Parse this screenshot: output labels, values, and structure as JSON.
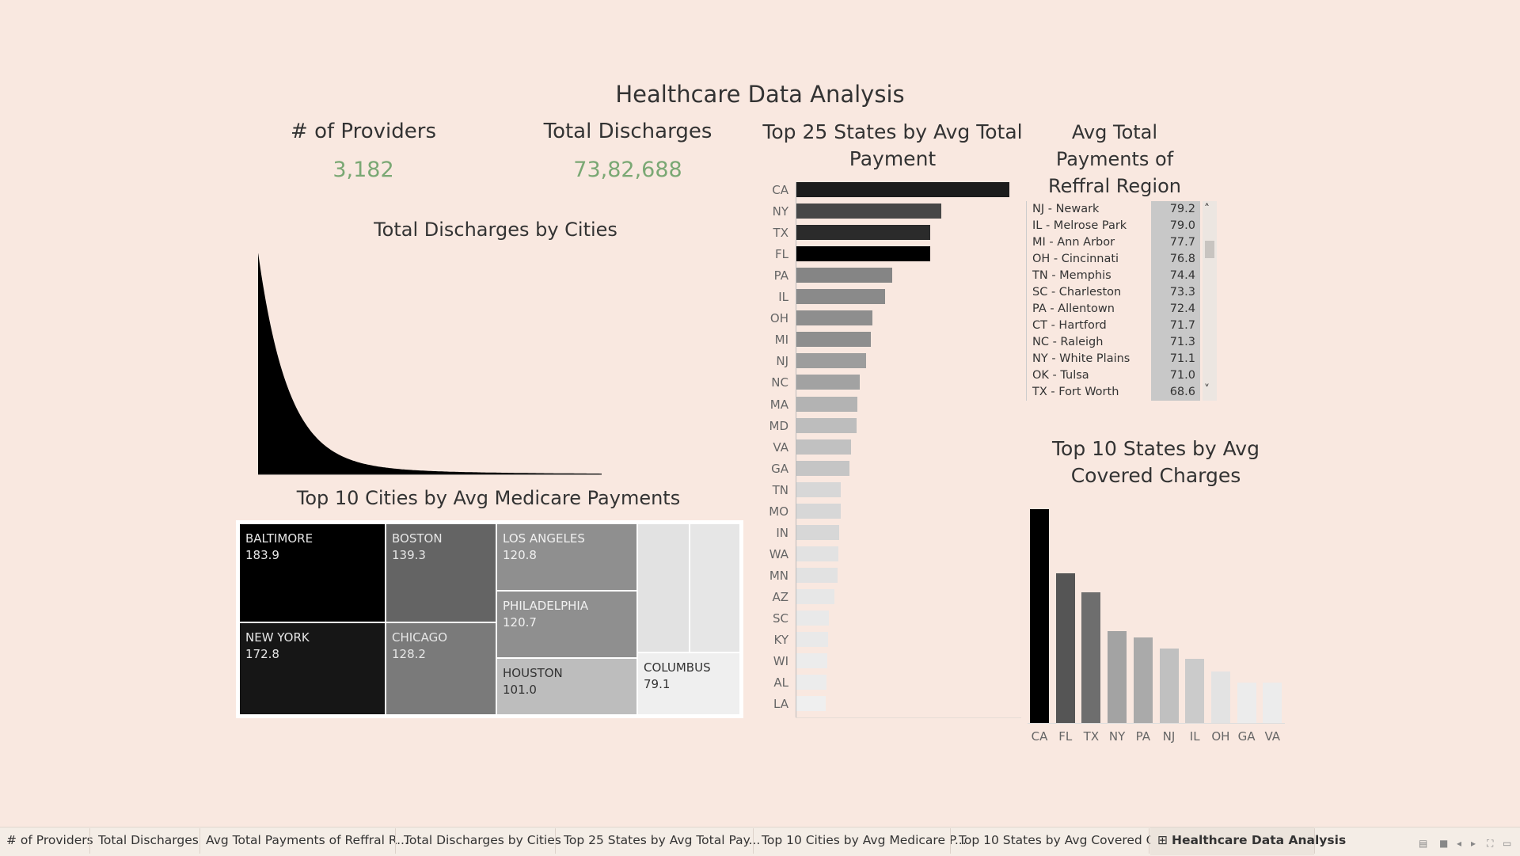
{
  "title": "Healthcare Data Analysis",
  "kpis": {
    "providers": {
      "label": "# of Providers",
      "value": "3,182"
    },
    "discharges": {
      "label": "Total Discharges",
      "value": "73,82,688"
    }
  },
  "discharges_by_cities": {
    "title": "Total Discharges by Cities"
  },
  "top25": {
    "title_line1": "Top 25 States by Avg Total",
    "title_line2": "Payment"
  },
  "region": {
    "title_line1": "Avg Total",
    "title_line2": "Payments of",
    "title_line3": "Reffral Region",
    "scroll_up": "˄",
    "scroll_down": "˅"
  },
  "treemap": {
    "title": "Top 10 Cities by Avg Medicare Payments"
  },
  "top10covered": {
    "title_line1": "Top 10 States by Avg",
    "title_line2": "Covered Charges"
  },
  "tabs": [
    {
      "label": "# of Providers"
    },
    {
      "label": "Total Discharges"
    },
    {
      "label": "Avg Total Payments of Reffral R..."
    },
    {
      "label": "Total Discharges by Cities"
    },
    {
      "label": "Top 25 States by Avg Total Pay..."
    },
    {
      "label": "Top 10 Cities by Avg Medicare P..."
    },
    {
      "label": "Top 10 States by Avg Covered C..."
    },
    {
      "label": "Healthcare Data Analysis",
      "icon": "⊞",
      "active": true
    }
  ],
  "chart_data": [
    {
      "type": "area",
      "title": "Total Discharges by Cities",
      "shape": "long-tail descending distribution",
      "xlabel": "",
      "ylabel": ""
    },
    {
      "type": "bar",
      "orientation": "horizontal",
      "title": "Top 25 States by Avg Total Payment",
      "categories": [
        "CA",
        "NY",
        "TX",
        "FL",
        "PA",
        "IL",
        "OH",
        "MI",
        "NJ",
        "NC",
        "MA",
        "MD",
        "VA",
        "GA",
        "TN",
        "MO",
        "IN",
        "WA",
        "MN",
        "AZ",
        "SC",
        "KY",
        "WI",
        "AL",
        "LA"
      ],
      "values": [
        100,
        68,
        63,
        63,
        45,
        42,
        36,
        35,
        33,
        30,
        29,
        28.5,
        26,
        25,
        21,
        21,
        20.5,
        20,
        19.5,
        18,
        15.5,
        15,
        14.8,
        14.5,
        14
      ],
      "colors": [
        "#1c1c1c",
        "#474747",
        "#2b2b2b",
        "#000000",
        "#858585",
        "#8a8a8a",
        "#8e8e8e",
        "#8e8e8e",
        "#9d9d9d",
        "#a2a2a2",
        "#b3b3b3",
        "#bdbdbd",
        "#c1c1c1",
        "#c5c5c5",
        "#d7d7d7",
        "#d7d7d7",
        "#d7d7d7",
        "#e2e2e2",
        "#e2e2e2",
        "#e7e7e7",
        "#e9e9e9",
        "#e9e9e9",
        "#ececec",
        "#ececec",
        "#efefef"
      ]
    },
    {
      "type": "table",
      "title": "Avg Total Payments of Reffral Region",
      "rows": [
        {
          "name": "NJ - Newark",
          "value": "79.2"
        },
        {
          "name": "IL - Melrose Park",
          "value": "79.0"
        },
        {
          "name": "MI - Ann Arbor",
          "value": "77.7"
        },
        {
          "name": "OH - Cincinnati",
          "value": "76.8"
        },
        {
          "name": "TN - Memphis",
          "value": "74.4"
        },
        {
          "name": "SC - Charleston",
          "value": "73.3"
        },
        {
          "name": "PA - Allentown",
          "value": "72.4"
        },
        {
          "name": "CT - Hartford",
          "value": "71.7"
        },
        {
          "name": "NC - Raleigh",
          "value": "71.3"
        },
        {
          "name": "NY - White Plains",
          "value": "71.1"
        },
        {
          "name": "OK - Tulsa",
          "value": "71.0"
        },
        {
          "name": "TX - Fort Worth",
          "value": "68.6"
        }
      ]
    },
    {
      "type": "heatmap",
      "subtype": "treemap",
      "title": "Top 10 Cities by Avg Medicare Payments",
      "cells": [
        {
          "name": "BALTIMORE",
          "value": "183.9",
          "color": "#000000",
          "text_color": "#e6e6e6"
        },
        {
          "name": "NEW YORK",
          "value": "172.8",
          "color": "#161616",
          "text_color": "#e6e6e6"
        },
        {
          "name": "BOSTON",
          "value": "139.3",
          "color": "#646464",
          "text_color": "#e6e6e6"
        },
        {
          "name": "CHICAGO",
          "value": "128.2",
          "color": "#7a7a7a",
          "text_color": "#e6e6e6"
        },
        {
          "name": "LOS ANGELES",
          "value": "120.8",
          "color": "#8f8f8f",
          "text_color": "#f0f0f0"
        },
        {
          "name": "PHILADELPHIA",
          "value": "120.7",
          "color": "#8f8f8f",
          "text_color": "#f0f0f0"
        },
        {
          "name": "HOUSTON",
          "value": "101.0",
          "color": "#bdbdbd",
          "text_color": "#333333"
        },
        {
          "name": "COLUMBUS",
          "value": "79.1",
          "color": "#efefef",
          "text_color": "#333333"
        },
        {
          "name": "",
          "value": "",
          "color": "#e2e2e2",
          "text_color": "#333333"
        },
        {
          "name": "",
          "value": "",
          "color": "#e6e6e6",
          "text_color": "#333333"
        }
      ]
    },
    {
      "type": "bar",
      "title": "Top 10 States by Avg Covered Charges",
      "categories": [
        "CA",
        "FL",
        "TX",
        "NY",
        "PA",
        "NJ",
        "IL",
        "OH",
        "GA",
        "VA"
      ],
      "values": [
        100,
        70,
        61,
        43,
        40,
        35,
        30,
        24,
        19,
        19
      ],
      "colors": [
        "#000000",
        "#555555",
        "#6e6e6e",
        "#a3a3a3",
        "#aaaaaa",
        "#c0c0c0",
        "#cbcbcb",
        "#e3e3e3",
        "#ececec",
        "#ececec"
      ]
    }
  ]
}
